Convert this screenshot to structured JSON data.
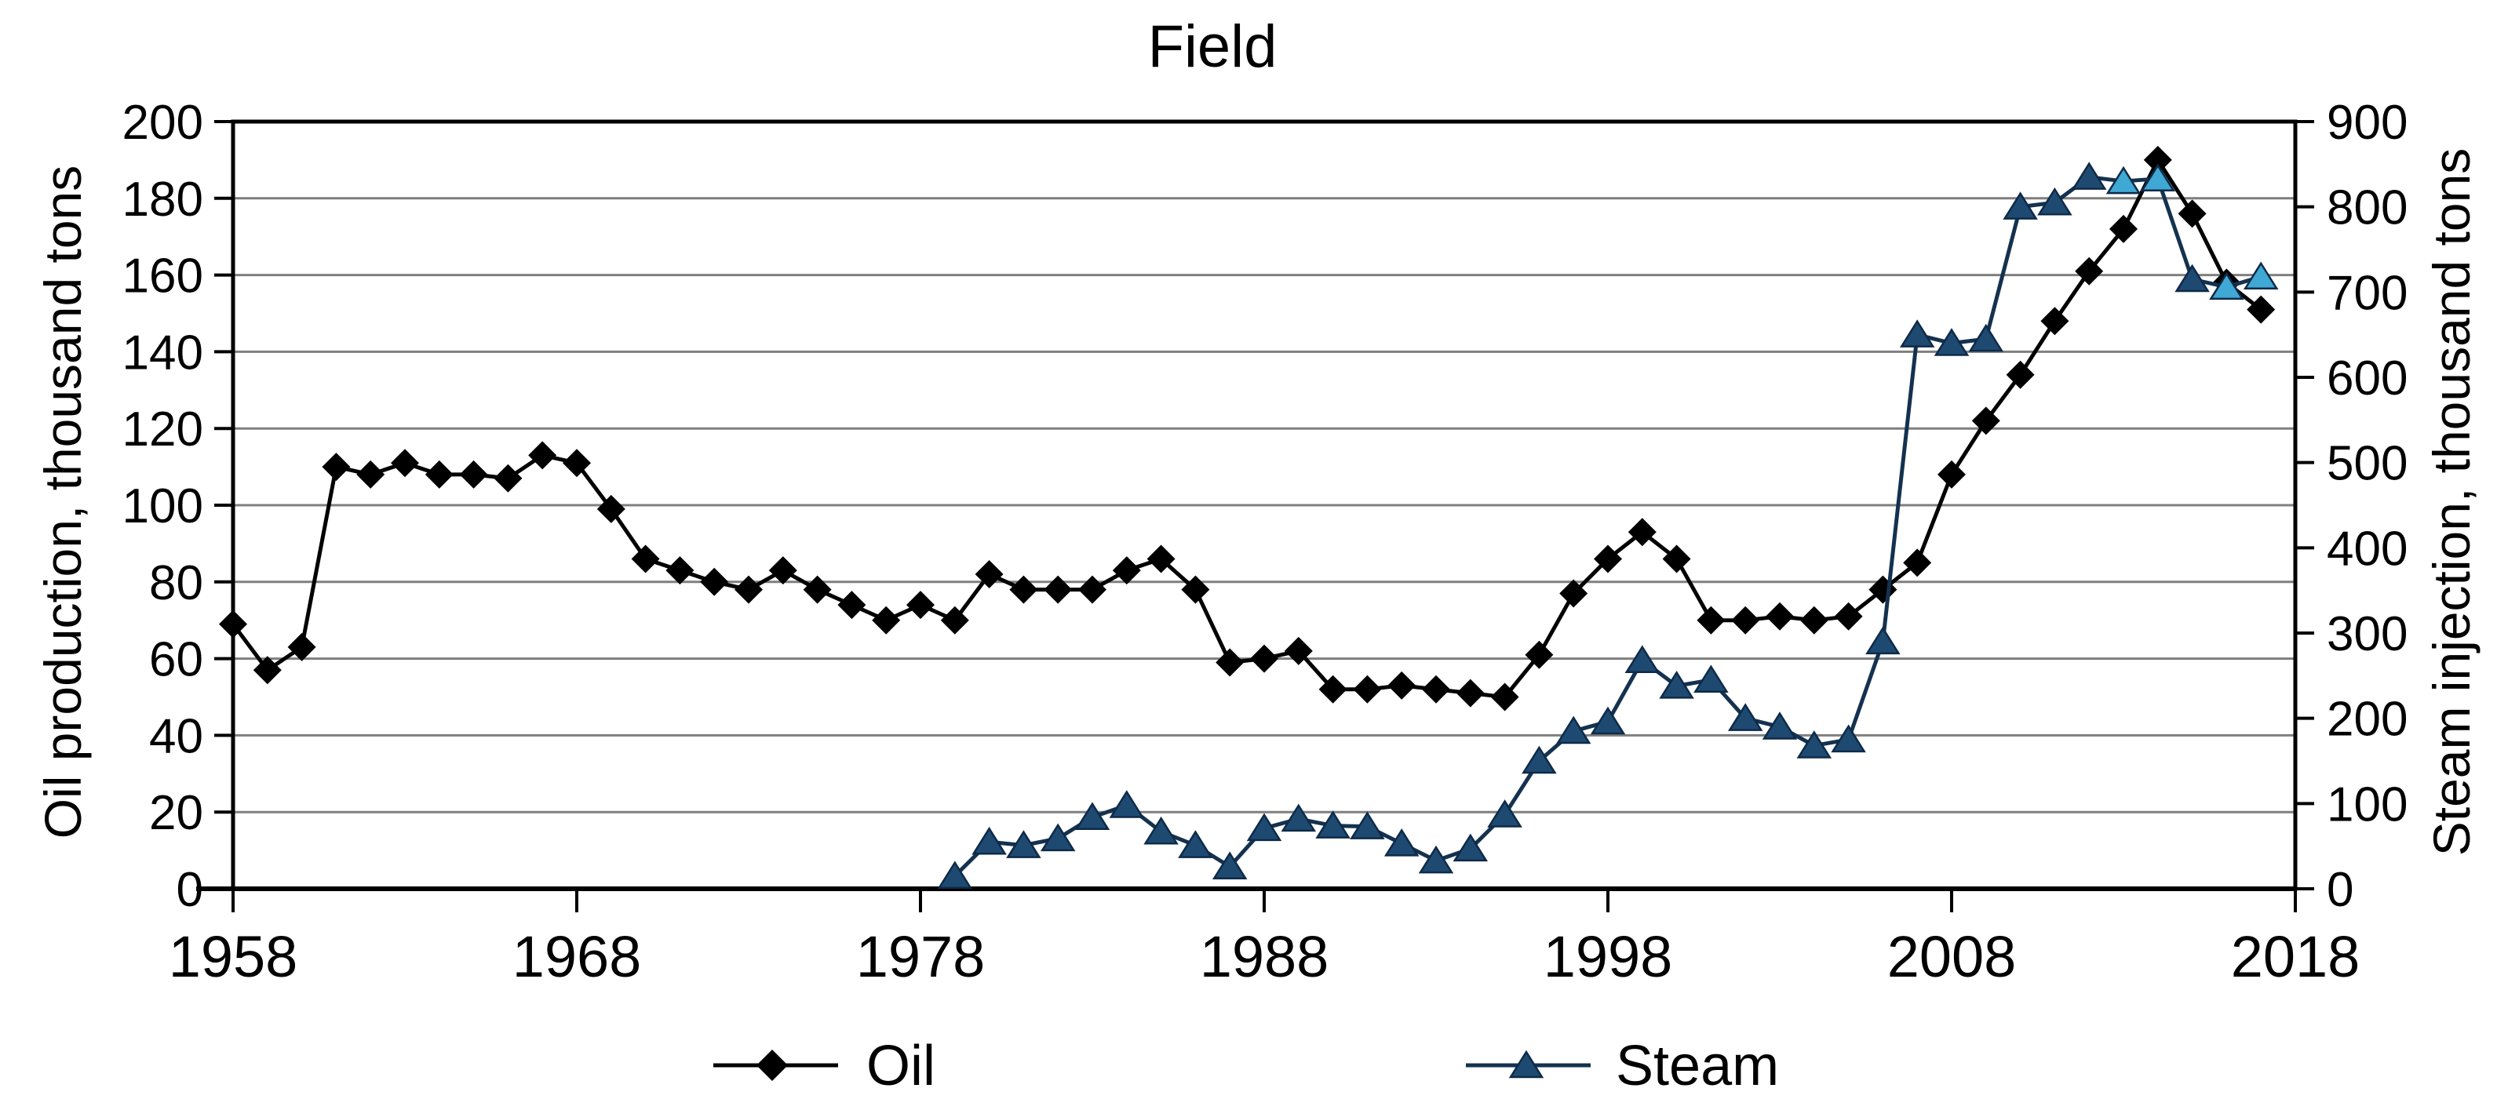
{
  "chart_data": {
    "type": "line",
    "title": "Field",
    "left_axis": {
      "title": "Oil production, thousand tons",
      "min": 0,
      "max": 200,
      "step": 20,
      "tick_labels": [
        "0",
        "20",
        "40",
        "60",
        "80",
        "100",
        "120",
        "140",
        "160",
        "180",
        "200"
      ]
    },
    "right_axis": {
      "title": "Steam injection, thousand tons",
      "min": 0,
      "max": 900,
      "step": 100,
      "tick_labels": [
        "0",
        "100",
        "200",
        "300",
        "400",
        "500",
        "600",
        "700",
        "800",
        "900"
      ]
    },
    "x_axis": {
      "min": 1958,
      "max": 2018,
      "tick_step": 10,
      "tick_labels": [
        "1958",
        "1968",
        "1978",
        "1988",
        "1998",
        "2008",
        "2018"
      ]
    },
    "grid": true,
    "legend_position": "bottom",
    "series": [
      {
        "name": "Oil",
        "axis": "left",
        "marker": "diamond",
        "line_color": "#000000",
        "marker_fill": "#000000",
        "start_year": 1958,
        "values": [
          69,
          57,
          63,
          110,
          108,
          111,
          108,
          108,
          107,
          113,
          111,
          99,
          86,
          83,
          80,
          78,
          83,
          78,
          74,
          70,
          74,
          70,
          82,
          78,
          78,
          78,
          83,
          86,
          78,
          59,
          60,
          62,
          52,
          52,
          53,
          52,
          51,
          50,
          61,
          77,
          86,
          93,
          86,
          70,
          70,
          71,
          70,
          71,
          78,
          85,
          108,
          122,
          134,
          148,
          161,
          172,
          190,
          176,
          158,
          151
        ]
      },
      {
        "name": "Steam",
        "axis": "right",
        "marker": "triangle",
        "line_color": "#14324F",
        "marker_fill": "#1E4A72",
        "marker_stroke": "#0E2A47",
        "highlight_fill": "#3FA8D4",
        "highlight_years": [
          2013,
          2014,
          2016,
          2017
        ],
        "start_year": 1979,
        "values": [
          15,
          55,
          51,
          59,
          84,
          98,
          67,
          51,
          26,
          71,
          82,
          74,
          73,
          53,
          33,
          47,
          87,
          150,
          185,
          196,
          268,
          238,
          245,
          200,
          190,
          168,
          175,
          290,
          650,
          640,
          645,
          800,
          805,
          835,
          830,
          833,
          715,
          706,
          718
        ]
      }
    ]
  },
  "colors": {
    "background": "#FFFFFF",
    "grid": "#7F7F7F",
    "axis": "#000000",
    "text": "#000000"
  }
}
